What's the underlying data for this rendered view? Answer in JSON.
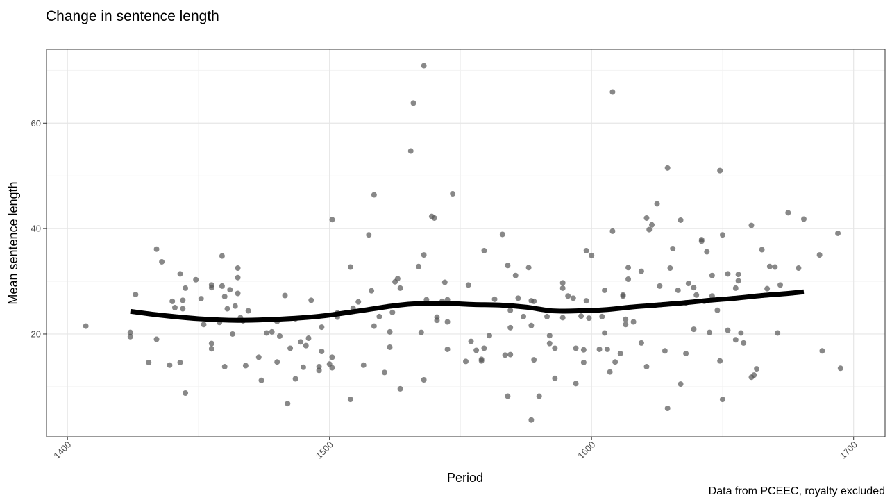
{
  "chart_data": {
    "type": "scatter",
    "title": "Change in sentence length",
    "caption": "Data from PCEEC, royalty excluded",
    "xlabel": "Period",
    "ylabel": "Mean sentence length",
    "xlim": [
      1392,
      1712
    ],
    "ylim": [
      0.5,
      74
    ],
    "xticks": [
      1400,
      1500,
      1600,
      1700
    ],
    "yticks": [
      20,
      40,
      60
    ],
    "grid": true,
    "point_color": "#555555",
    "line_color": "#000000",
    "series": [
      {
        "type": "scatter",
        "points": [
          [
            1407,
            21.5
          ],
          [
            1424,
            20.3
          ],
          [
            1424,
            19.5
          ],
          [
            1426,
            27.5
          ],
          [
            1431,
            14.6
          ],
          [
            1434,
            19
          ],
          [
            1434,
            36.1
          ],
          [
            1436,
            33.7
          ],
          [
            1439,
            14.1
          ],
          [
            1440,
            26.2
          ],
          [
            1441,
            25
          ],
          [
            1443,
            14.6
          ],
          [
            1443,
            31.4
          ],
          [
            1444,
            24.8
          ],
          [
            1444,
            26.4
          ],
          [
            1445,
            28.7
          ],
          [
            1445,
            8.8
          ],
          [
            1449,
            30.3
          ],
          [
            1451,
            26.7
          ],
          [
            1452,
            21.8
          ],
          [
            1455,
            17.2
          ],
          [
            1455,
            18.2
          ],
          [
            1455,
            28.8
          ],
          [
            1455,
            29.3
          ],
          [
            1458,
            22.2
          ],
          [
            1459,
            29.1
          ],
          [
            1459,
            34.8
          ],
          [
            1460,
            13.8
          ],
          [
            1460,
            27.1
          ],
          [
            1461,
            24.8
          ],
          [
            1462,
            28.4
          ],
          [
            1463,
            20
          ],
          [
            1464,
            25.3
          ],
          [
            1465,
            27.7
          ],
          [
            1465,
            30.7
          ],
          [
            1465,
            32.5
          ],
          [
            1466,
            23.1
          ],
          [
            1467,
            22.5
          ],
          [
            1468,
            14
          ],
          [
            1469,
            24.4
          ],
          [
            1473,
            15.6
          ],
          [
            1474,
            11.2
          ],
          [
            1476,
            20.2
          ],
          [
            1478,
            20.4
          ],
          [
            1479,
            22.7
          ],
          [
            1480,
            14.7
          ],
          [
            1480,
            22.4
          ],
          [
            1481,
            19.6
          ],
          [
            1483,
            27.3
          ],
          [
            1484,
            6.8
          ],
          [
            1485,
            17.3
          ],
          [
            1487,
            11.5
          ],
          [
            1487,
            22.9
          ],
          [
            1489,
            18.5
          ],
          [
            1490,
            13.7
          ],
          [
            1491,
            17.8
          ],
          [
            1492,
            19.2
          ],
          [
            1493,
            26.4
          ],
          [
            1496,
            13.1
          ],
          [
            1496,
            13.8
          ],
          [
            1497,
            21.3
          ],
          [
            1497,
            16.7
          ],
          [
            1500,
            14.3
          ],
          [
            1501,
            13.6
          ],
          [
            1501,
            15.6
          ],
          [
            1501,
            41.7
          ],
          [
            1503,
            23.2
          ],
          [
            1503,
            24
          ],
          [
            1508,
            7.6
          ],
          [
            1508,
            32.7
          ],
          [
            1509,
            24.9
          ],
          [
            1511,
            26.1
          ],
          [
            1513,
            14.1
          ],
          [
            1515,
            38.8
          ],
          [
            1516,
            28.2
          ],
          [
            1517,
            21.5
          ],
          [
            1517,
            46.4
          ],
          [
            1519,
            23.3
          ],
          [
            1521,
            12.7
          ],
          [
            1523,
            20.4
          ],
          [
            1523,
            17.5
          ],
          [
            1524,
            24.1
          ],
          [
            1525,
            29.9
          ],
          [
            1526,
            30.5
          ],
          [
            1527,
            28.7
          ],
          [
            1527,
            9.6
          ],
          [
            1531,
            54.7
          ],
          [
            1532,
            63.8
          ],
          [
            1534,
            32.8
          ],
          [
            1535,
            20.3
          ],
          [
            1536,
            35
          ],
          [
            1536,
            11.3
          ],
          [
            1536,
            70.9
          ],
          [
            1537,
            26.5
          ],
          [
            1539,
            42.3
          ],
          [
            1540,
            42
          ],
          [
            1541,
            22.6
          ],
          [
            1541,
            23.2
          ],
          [
            1543,
            26.2
          ],
          [
            1544,
            29.8
          ],
          [
            1545,
            17.1
          ],
          [
            1545,
            26.5
          ],
          [
            1545,
            22.3
          ],
          [
            1547,
            46.6
          ],
          [
            1552,
            14.8
          ],
          [
            1553,
            29.3
          ],
          [
            1554,
            18.6
          ],
          [
            1556,
            16.9
          ],
          [
            1558,
            14.9
          ],
          [
            1558,
            15.2
          ],
          [
            1559,
            17.3
          ],
          [
            1559,
            35.8
          ],
          [
            1561,
            19.7
          ],
          [
            1563,
            26.6
          ],
          [
            1566,
            38.9
          ],
          [
            1567,
            16
          ],
          [
            1568,
            33
          ],
          [
            1568,
            8.2
          ],
          [
            1569,
            16.1
          ],
          [
            1569,
            21.2
          ],
          [
            1569,
            24.5
          ],
          [
            1571,
            31.1
          ],
          [
            1572,
            26.8
          ],
          [
            1574,
            23.3
          ],
          [
            1576,
            32.6
          ],
          [
            1577,
            26.3
          ],
          [
            1577,
            3.7
          ],
          [
            1577,
            21.6
          ],
          [
            1578,
            15.1
          ],
          [
            1578,
            26.2
          ],
          [
            1580,
            8.2
          ],
          [
            1583,
            23.3
          ],
          [
            1584,
            18.2
          ],
          [
            1584,
            19.7
          ],
          [
            1586,
            11.6
          ],
          [
            1586,
            17.3
          ],
          [
            1589,
            23.1
          ],
          [
            1589,
            28.7
          ],
          [
            1589,
            29.7
          ],
          [
            1591,
            27.2
          ],
          [
            1593,
            26.8
          ],
          [
            1594,
            17.3
          ],
          [
            1594,
            10.6
          ],
          [
            1596,
            23.4
          ],
          [
            1597,
            17
          ],
          [
            1597,
            14.6
          ],
          [
            1598,
            35.8
          ],
          [
            1598,
            26.3
          ],
          [
            1599,
            23
          ],
          [
            1600,
            34.9
          ],
          [
            1603,
            17.1
          ],
          [
            1604,
            23.3
          ],
          [
            1605,
            20.2
          ],
          [
            1605,
            28.3
          ],
          [
            1606,
            17.1
          ],
          [
            1607,
            12.8
          ],
          [
            1608,
            39.5
          ],
          [
            1608,
            65.9
          ],
          [
            1609,
            14.7
          ],
          [
            1611,
            16.3
          ],
          [
            1612,
            27.4
          ],
          [
            1612,
            27.2
          ],
          [
            1613,
            21.8
          ],
          [
            1613,
            22.8
          ],
          [
            1614,
            32.6
          ],
          [
            1614,
            30.4
          ],
          [
            1616,
            22.3
          ],
          [
            1619,
            18.3
          ],
          [
            1619,
            31.9
          ],
          [
            1621,
            13.8
          ],
          [
            1621,
            42
          ],
          [
            1622,
            39.8
          ],
          [
            1623,
            40.7
          ],
          [
            1625,
            44.7
          ],
          [
            1626,
            29.1
          ],
          [
            1628,
            16.8
          ],
          [
            1629,
            5.9
          ],
          [
            1629,
            51.5
          ],
          [
            1630,
            32.5
          ],
          [
            1631,
            36.2
          ],
          [
            1633,
            28.3
          ],
          [
            1634,
            10.5
          ],
          [
            1634,
            41.6
          ],
          [
            1636,
            16.3
          ],
          [
            1636,
            25.9
          ],
          [
            1637,
            29.6
          ],
          [
            1639,
            20.9
          ],
          [
            1639,
            28.8
          ],
          [
            1640,
            27.4
          ],
          [
            1642,
            37.9
          ],
          [
            1642,
            37.6
          ],
          [
            1643,
            26.2
          ],
          [
            1644,
            35.6
          ],
          [
            1645,
            20.3
          ],
          [
            1646,
            27.2
          ],
          [
            1646,
            31.1
          ],
          [
            1648,
            24.5
          ],
          [
            1649,
            51
          ],
          [
            1649,
            14.9
          ],
          [
            1650,
            7.6
          ],
          [
            1650,
            38.8
          ],
          [
            1652,
            20.7
          ],
          [
            1652,
            31.4
          ],
          [
            1654,
            26.7
          ],
          [
            1655,
            18.9
          ],
          [
            1655,
            28.7
          ],
          [
            1656,
            31.3
          ],
          [
            1656,
            30.1
          ],
          [
            1657,
            20.2
          ],
          [
            1658,
            18.3
          ],
          [
            1661,
            40.6
          ],
          [
            1661,
            11.8
          ],
          [
            1662,
            12.2
          ],
          [
            1663,
            13.4
          ],
          [
            1665,
            36
          ],
          [
            1667,
            28.6
          ],
          [
            1668,
            32.8
          ],
          [
            1670,
            32.7
          ],
          [
            1671,
            20.2
          ],
          [
            1672,
            29.3
          ],
          [
            1675,
            43
          ],
          [
            1679,
            32.5
          ],
          [
            1681,
            41.8
          ],
          [
            1687,
            35
          ],
          [
            1688,
            16.8
          ],
          [
            1694,
            39.1
          ],
          [
            1695,
            13.5
          ]
        ]
      },
      {
        "type": "line",
        "points": [
          [
            1424,
            24.3
          ],
          [
            1435,
            23.6
          ],
          [
            1450,
            22.9
          ],
          [
            1465,
            22.6
          ],
          [
            1480,
            22.8
          ],
          [
            1495,
            23.3
          ],
          [
            1510,
            24.3
          ],
          [
            1525,
            25.4
          ],
          [
            1535,
            25.8
          ],
          [
            1545,
            25.8
          ],
          [
            1555,
            25.6
          ],
          [
            1565,
            25.5
          ],
          [
            1575,
            25.1
          ],
          [
            1585,
            24.4
          ],
          [
            1595,
            24.4
          ],
          [
            1605,
            24.6
          ],
          [
            1615,
            25.1
          ],
          [
            1625,
            25.5
          ],
          [
            1635,
            25.9
          ],
          [
            1645,
            26.4
          ],
          [
            1655,
            26.8
          ],
          [
            1665,
            27.3
          ],
          [
            1675,
            27.7
          ],
          [
            1681,
            28
          ]
        ]
      }
    ]
  }
}
